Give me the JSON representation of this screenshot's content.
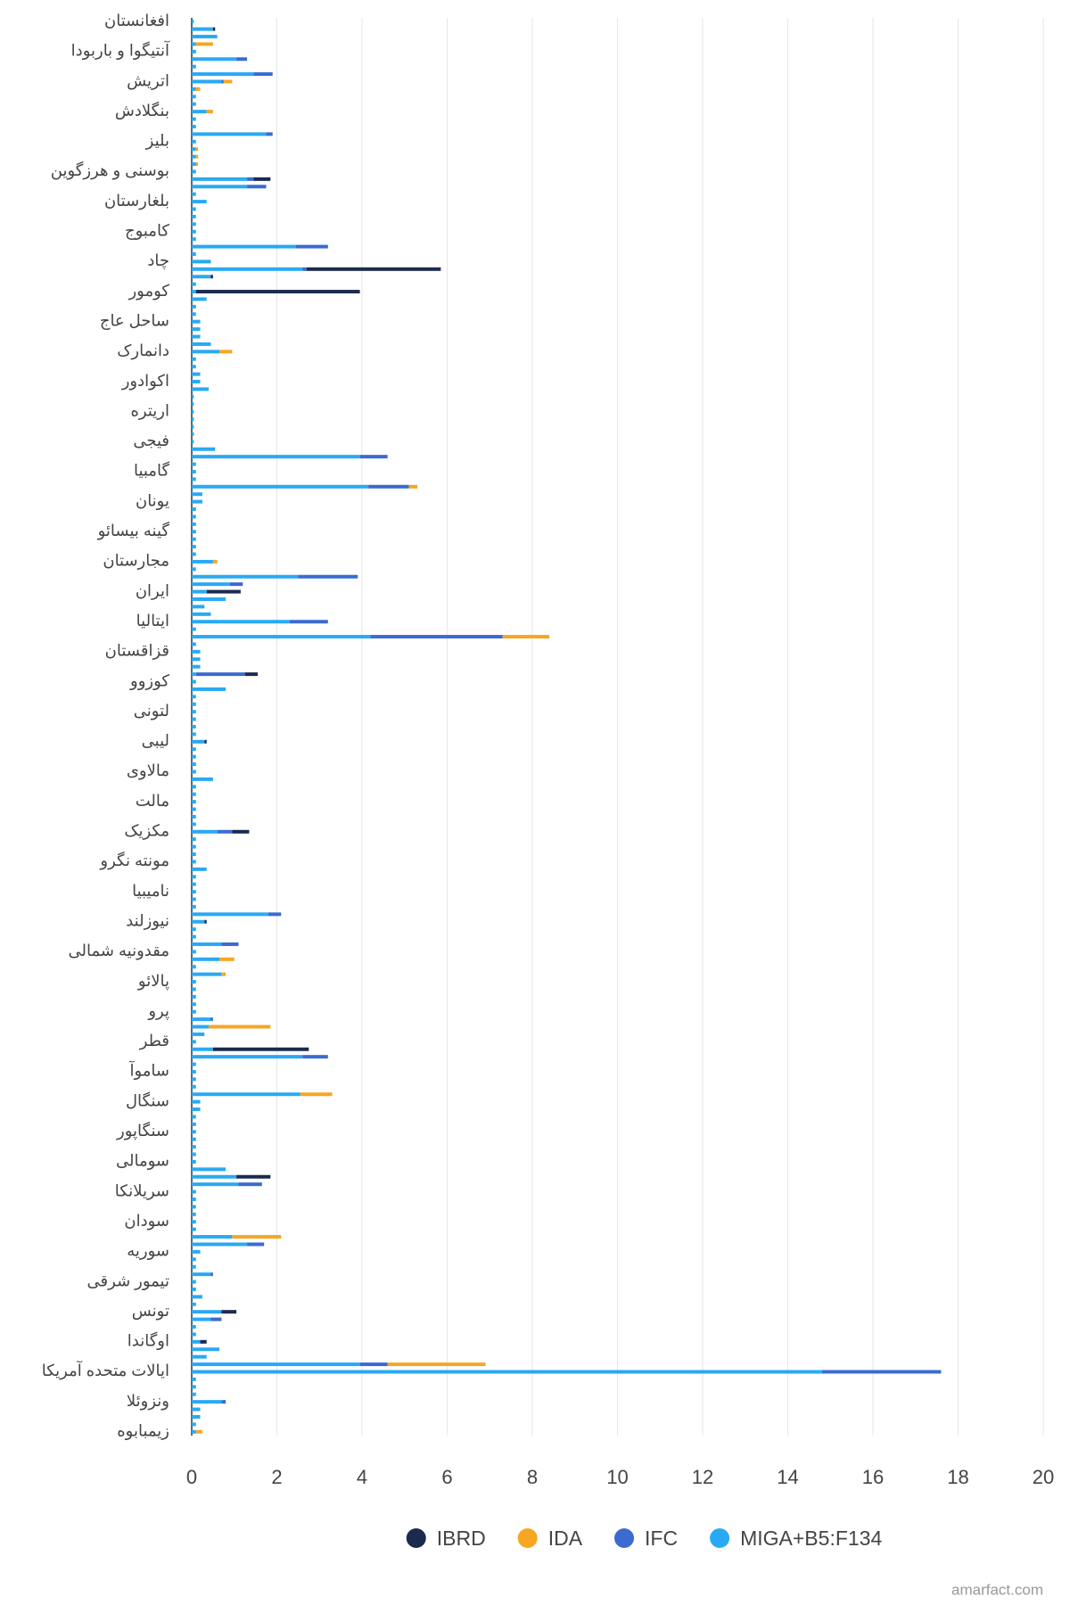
{
  "chart_data": {
    "type": "stacked-barh",
    "categories": [
      "افغانستان",
      null,
      null,
      null,
      "آنتیگوا و باربودا",
      null,
      null,
      null,
      "اتریش",
      null,
      null,
      null,
      "بنگلادش",
      null,
      null,
      null,
      "بلیز",
      null,
      null,
      null,
      "بوسنی و هرزگوین",
      null,
      null,
      null,
      "بلغارستان",
      null,
      null,
      null,
      "کامبوج",
      null,
      null,
      null,
      "چاد",
      null,
      null,
      null,
      "کومور",
      null,
      null,
      null,
      "ساحل عاج",
      null,
      null,
      null,
      "دانمارک",
      null,
      null,
      null,
      "اکوادور",
      null,
      null,
      null,
      "اریتره",
      null,
      null,
      null,
      "فیجی",
      null,
      null,
      null,
      "گامبیا",
      null,
      null,
      null,
      "یونان",
      null,
      null,
      null,
      "گینه بیسائو",
      null,
      null,
      null,
      "مجارستان",
      null,
      null,
      null,
      "ایران",
      null,
      null,
      null,
      "ایتالیا",
      null,
      null,
      null,
      "قزاقستان",
      null,
      null,
      null,
      "کوزوو",
      null,
      null,
      null,
      "لتونی",
      null,
      null,
      null,
      "لیبی",
      null,
      null,
      null,
      "مالاوی",
      null,
      null,
      null,
      "مالت",
      null,
      null,
      null,
      "مکزیک",
      null,
      null,
      null,
      "مونته نگرو",
      null,
      null,
      null,
      "نامیبیا",
      null,
      null,
      null,
      "نیوزلند",
      null,
      null,
      null,
      "مقدونیه شمالی",
      null,
      null,
      null,
      "پالائو",
      null,
      null,
      null,
      "پرو",
      null,
      null,
      null,
      "قطر",
      null,
      null,
      null,
      "ساموآ",
      null,
      null,
      null,
      "سنگال",
      null,
      null,
      null,
      "سنگاپور",
      null,
      null,
      null,
      "سومالی",
      null,
      null,
      null,
      "سریلانکا",
      null,
      null,
      null,
      "سودان",
      null,
      null,
      null,
      "سوریه",
      null,
      null,
      null,
      "تیمور شرقی",
      null,
      null,
      null,
      "تونس",
      null,
      null,
      null,
      "اوگاندا",
      null,
      null,
      null,
      "ایالات متحده آمریکا",
      null,
      null,
      null,
      "ونزوئلا",
      null,
      null,
      null,
      "زیمبابوه"
    ],
    "series": [
      {
        "name": "IBRD",
        "color": "#1b2a4e",
        "values": [
          0,
          0.05,
          0,
          0,
          0,
          0,
          0,
          0,
          0,
          0,
          0,
          0,
          0,
          0,
          0,
          0,
          0,
          0,
          0,
          0,
          0,
          0.4,
          0,
          0,
          0,
          0,
          0,
          0,
          0,
          0,
          0,
          0,
          0,
          3.15,
          0.05,
          0,
          3.85,
          0,
          0,
          0,
          0,
          0,
          0,
          0,
          0,
          0,
          0,
          0,
          0,
          0,
          0,
          0,
          0,
          0,
          0,
          0,
          0,
          0,
          0,
          0,
          0,
          0,
          0,
          0,
          0,
          0,
          0,
          0,
          0,
          0,
          0,
          0,
          0,
          0,
          0,
          0,
          0.8,
          0,
          0,
          0,
          0,
          0,
          0,
          0,
          0,
          0,
          0,
          0.3,
          0,
          0,
          0,
          0,
          0,
          0,
          0,
          0,
          0.05,
          0,
          0,
          0,
          0,
          0,
          0,
          0,
          0,
          0,
          0,
          0,
          0.4,
          0,
          0,
          0,
          0,
          0,
          0,
          0,
          0,
          0,
          0,
          0,
          0.05,
          0,
          0,
          0,
          0,
          0,
          0,
          0,
          0,
          0,
          0,
          0,
          0,
          0,
          0,
          0,
          0,
          2.25,
          0,
          0,
          0,
          0,
          0,
          0,
          0,
          0,
          0,
          0,
          0,
          0,
          0,
          0,
          0,
          0,
          0.8,
          0,
          0,
          0,
          0,
          0,
          0,
          0,
          0,
          0,
          0,
          0,
          0,
          0,
          0,
          0,
          0,
          0,
          0.35,
          0,
          0,
          0,
          0.15,
          0,
          0,
          0,
          0,
          0,
          0,
          0,
          0,
          0,
          0,
          0,
          0
        ]
      },
      {
        "name": "IDA",
        "color": "#f6a623",
        "values": [
          0,
          0,
          0,
          0.4,
          0,
          0,
          0,
          0,
          0.2,
          0.1,
          0,
          0,
          0.15,
          0,
          0,
          0,
          0,
          0.05,
          0.05,
          0.05,
          0,
          0,
          0,
          0,
          0,
          0,
          0,
          0,
          0,
          0,
          0,
          0,
          0,
          0,
          0,
          0,
          0,
          0,
          0,
          0,
          0,
          0,
          0,
          0,
          0.3,
          0,
          0,
          0,
          0,
          0,
          0,
          0,
          0,
          0,
          0,
          0,
          0,
          0,
          0,
          0,
          0,
          0,
          0.2,
          0,
          0,
          0,
          0,
          0,
          0,
          0,
          0,
          0,
          0.1,
          0,
          0,
          0,
          0,
          0,
          0,
          0,
          0,
          0,
          1.1,
          0,
          0,
          0,
          0,
          0,
          0,
          0,
          0,
          0,
          0,
          0,
          0,
          0,
          0,
          0,
          0,
          0,
          0,
          0,
          0,
          0,
          0,
          0,
          0,
          0,
          0,
          0,
          0,
          0,
          0,
          0,
          0,
          0,
          0,
          0,
          0,
          0,
          0,
          0,
          0,
          0,
          0,
          0.35,
          0,
          0.1,
          0,
          0,
          0,
          0,
          0,
          0,
          1.45,
          0,
          0,
          0,
          0,
          0,
          0,
          0,
          0,
          0.75,
          0,
          0,
          0,
          0,
          0,
          0,
          0,
          0,
          0,
          0,
          0,
          0,
          0,
          0,
          0,
          0,
          0,
          0,
          1.15,
          0,
          0,
          0,
          0,
          0,
          0,
          0,
          0,
          0,
          0,
          0,
          0,
          0,
          0,
          0,
          0,
          2.3,
          0,
          0,
          0,
          0,
          0,
          0,
          0,
          0,
          0.15
        ]
      },
      {
        "name": "IFC",
        "color": "#3b6bd0",
        "values": [
          0,
          0,
          0,
          0,
          0,
          0.25,
          0,
          0.45,
          0.05,
          0,
          0,
          0,
          0,
          0,
          0,
          0.15,
          0,
          0,
          0,
          0,
          0,
          0.15,
          0.45,
          0,
          0,
          0,
          0,
          0,
          0,
          0,
          0.75,
          0,
          0,
          0.1,
          0,
          0,
          0,
          0,
          0,
          0,
          0,
          0,
          0,
          0,
          0,
          0,
          0,
          0,
          0,
          0,
          0,
          0,
          0,
          0,
          0,
          0,
          0,
          0,
          0.65,
          0,
          0,
          0,
          0.95,
          0,
          0,
          0,
          0,
          0,
          0,
          0,
          0,
          0,
          0,
          0,
          1.4,
          0.3,
          0,
          0,
          0,
          0,
          0.9,
          0,
          3.1,
          0,
          0,
          0,
          0,
          1.15,
          0,
          0,
          0,
          0,
          0,
          0,
          0,
          0,
          0,
          0,
          0,
          0,
          0,
          0,
          0,
          0,
          0,
          0,
          0,
          0,
          0.35,
          0,
          0,
          0,
          0,
          0,
          0,
          0,
          0,
          0,
          0,
          0.3,
          0,
          0,
          0,
          0.4,
          0,
          0,
          0,
          0,
          0,
          0,
          0,
          0,
          0,
          0.05,
          0,
          0,
          0,
          0,
          0.6,
          0,
          0,
          0,
          0,
          0,
          0,
          0,
          0,
          0,
          0,
          0,
          0,
          0,
          0,
          0,
          0,
          0.55,
          0,
          0,
          0,
          0,
          0,
          0,
          0,
          0.4,
          0,
          0,
          0,
          0.05,
          0,
          0,
          0,
          0,
          0,
          0.25,
          0,
          0,
          0,
          0,
          0,
          0.65,
          2.8,
          0,
          0,
          0,
          0.1,
          0,
          0,
          0,
          0
        ]
      },
      {
        "name": "MIGA+B5:F134",
        "color": "#2aa9f3",
        "values": [
          0.05,
          0.5,
          0.6,
          0.1,
          0.1,
          1.05,
          0.1,
          1.45,
          0.7,
          0.1,
          0.1,
          0.1,
          0.35,
          0.1,
          0.1,
          1.75,
          0.1,
          0.1,
          0.1,
          0.1,
          0.1,
          1.3,
          1.3,
          0.1,
          0.35,
          0.1,
          0.1,
          0.1,
          0.1,
          0.1,
          2.45,
          0.1,
          0.45,
          2.6,
          0.45,
          0.1,
          0.1,
          0.35,
          0.1,
          0.1,
          0.2,
          0.2,
          0.2,
          0.45,
          0.65,
          0.1,
          0.1,
          0.2,
          0.2,
          0.4,
          0.05,
          0.05,
          0.05,
          0.05,
          0.05,
          0.05,
          0.05,
          0.55,
          3.95,
          0.1,
          0.1,
          0.1,
          4.15,
          0.25,
          0.25,
          0.1,
          0.1,
          0.1,
          0.1,
          0.1,
          0.1,
          0.1,
          0.5,
          0.1,
          2.5,
          0.9,
          0.35,
          0.8,
          0.3,
          0.45,
          2.3,
          0.1,
          4.2,
          0.1,
          0.2,
          0.2,
          0.2,
          0.1,
          0.1,
          0.8,
          0.1,
          0.1,
          0.1,
          0.1,
          0.1,
          0.1,
          0.3,
          0.1,
          0.1,
          0.1,
          0.1,
          0.5,
          0.1,
          0.1,
          0.1,
          0.1,
          0.1,
          0.1,
          0.6,
          0.1,
          0.1,
          0.1,
          0.1,
          0.35,
          0.1,
          0.1,
          0.1,
          0.1,
          0.1,
          1.8,
          0.3,
          0.1,
          0.1,
          0.7,
          0.1,
          0.65,
          0.1,
          0.7,
          0.1,
          0.1,
          0.1,
          0.1,
          0.1,
          0.45,
          0.4,
          0.3,
          0.1,
          0.5,
          2.6,
          0.1,
          0.1,
          0.1,
          0.1,
          2.55,
          0.2,
          0.2,
          0.1,
          0.1,
          0.1,
          0.1,
          0.1,
          0.1,
          0.1,
          0.8,
          1.05,
          1.1,
          0.1,
          0.1,
          0.1,
          0.1,
          0.1,
          0.1,
          0.95,
          1.3,
          0.2,
          0.1,
          0.1,
          0.45,
          0.1,
          0.1,
          0.25,
          0.1,
          0.7,
          0.45,
          0.1,
          0.1,
          0.2,
          0.65,
          0.35,
          3.95,
          14.8,
          0.1,
          0.1,
          0.1,
          0.7,
          0.2,
          0.2,
          0.1,
          0.1
        ]
      }
    ],
    "xlim": [
      0,
      20
    ],
    "xticks": [
      0,
      2,
      4,
      6,
      8,
      10,
      12,
      14,
      16,
      18,
      20
    ],
    "grid": true,
    "legend": "bottom",
    "watermark": "amarfact.com"
  }
}
